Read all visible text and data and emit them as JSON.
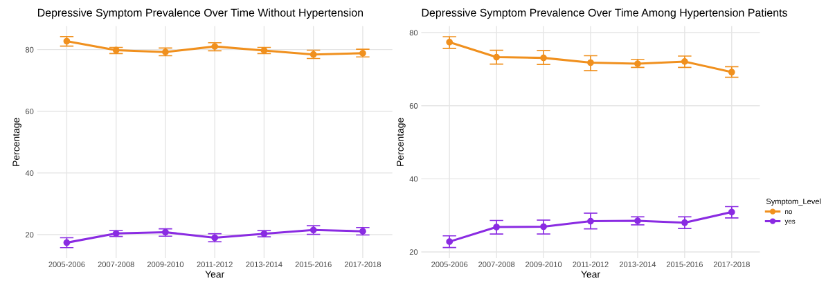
{
  "chart_data": [
    {
      "type": "line",
      "title": "Depressive Symptom Prevalence Over Time Without Hypertension",
      "xlabel": "Year",
      "ylabel": "Percentage",
      "categories": [
        "2005-2006",
        "2007-2008",
        "2009-2010",
        "2011-2012",
        "2013-2014",
        "2015-2016",
        "2017-2018"
      ],
      "series": [
        {
          "color": "#f0901e",
          "values": [
            82.7,
            79.8,
            79.2,
            81.0,
            79.7,
            78.4,
            78.8
          ],
          "errors": [
            [
              81.1,
              84.2
            ],
            [
              78.7,
              80.7
            ],
            [
              78.0,
              80.5
            ],
            [
              79.6,
              82.2
            ],
            [
              78.7,
              80.7
            ],
            [
              77.1,
              79.8
            ],
            [
              77.6,
              80.1
            ]
          ]
        },
        {
          "color": "#8a2be2",
          "values": [
            17.4,
            20.4,
            20.8,
            19.0,
            20.3,
            21.5,
            21.1
          ],
          "errors": [
            [
              15.8,
              19.0
            ],
            [
              19.4,
              21.3
            ],
            [
              19.5,
              21.9
            ],
            [
              17.7,
              20.3
            ],
            [
              19.3,
              21.3
            ],
            [
              20.1,
              22.9
            ],
            [
              19.9,
              22.3
            ]
          ]
        }
      ],
      "ylim": [
        12.4,
        87.6
      ],
      "yticks": [
        20,
        40,
        60,
        80
      ],
      "grid": true,
      "marker": "circle",
      "line_style": "solid",
      "legend": false
    },
    {
      "type": "line",
      "title": "Depressive Symptom Prevalence Over Time Among Hypertension Patients",
      "xlabel": "Year",
      "ylabel": "Percentage",
      "legend_title": "Symptom_Level",
      "categories": [
        "2005-2006",
        "2007-2008",
        "2009-2010",
        "2011-2012",
        "2013-2014",
        "2015-2016",
        "2017-2018"
      ],
      "series": [
        {
          "name": "no",
          "color": "#f0901e",
          "values": [
            77.4,
            73.3,
            73.1,
            71.8,
            71.5,
            72.1,
            69.2
          ],
          "errors": [
            [
              75.7,
              78.9
            ],
            [
              71.4,
              75.2
            ],
            [
              71.3,
              75.1
            ],
            [
              69.6,
              73.7
            ],
            [
              70.5,
              72.7
            ],
            [
              70.5,
              73.6
            ],
            [
              67.8,
              70.7
            ]
          ]
        },
        {
          "name": "yes",
          "color": "#8a2be2",
          "values": [
            22.8,
            26.8,
            26.9,
            28.4,
            28.5,
            28.0,
            30.9
          ],
          "errors": [
            [
              21.2,
              24.4
            ],
            [
              24.9,
              28.6
            ],
            [
              24.9,
              28.7
            ],
            [
              26.3,
              30.6
            ],
            [
              27.4,
              29.6
            ],
            [
              26.4,
              29.6
            ],
            [
              29.3,
              32.4
            ]
          ]
        }
      ],
      "ylim": [
        18.3,
        81.8
      ],
      "yticks": [
        20,
        40,
        60,
        80
      ],
      "grid": true,
      "marker": "circle",
      "line_style": "solid",
      "legend": "right"
    }
  ]
}
